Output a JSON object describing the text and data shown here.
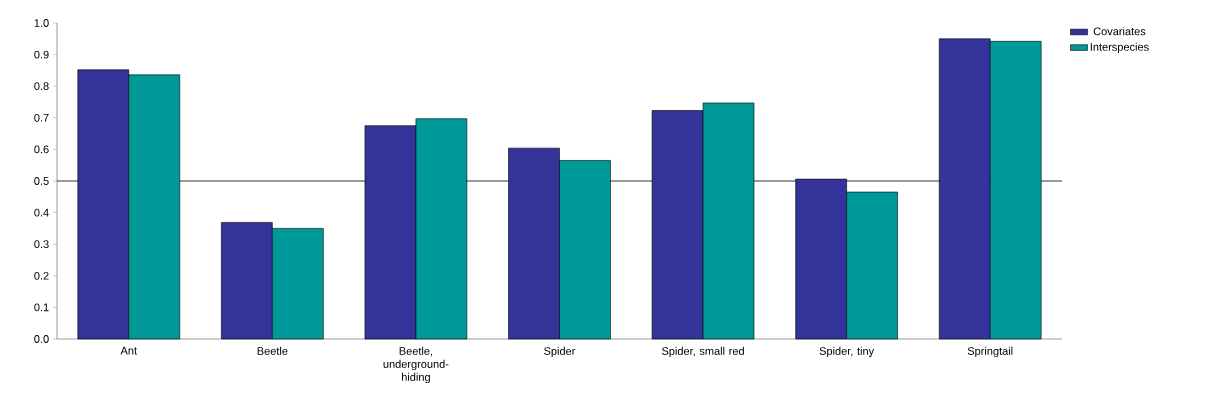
{
  "chart_data": {
    "type": "bar",
    "categories": [
      "Ant",
      "Beetle",
      "Beetle, underground-hiding",
      "Spider",
      "Spider, small red",
      "Spider, tiny",
      "Springtail"
    ],
    "series": [
      {
        "name": "Covariates",
        "color": "#333399",
        "values": [
          0.852,
          0.369,
          0.675,
          0.604,
          0.723,
          0.506,
          0.95
        ]
      },
      {
        "name": "Interspecies",
        "color": "#009999",
        "values": [
          0.836,
          0.35,
          0.697,
          0.565,
          0.747,
          0.465,
          0.942
        ]
      }
    ],
    "ylim": [
      0,
      1
    ],
    "yticks": [
      {
        "value": 0,
        "label": "0.0"
      },
      {
        "value": 0.1,
        "label": "0.1"
      },
      {
        "value": 0.2,
        "label": "0.2"
      },
      {
        "value": 0.3,
        "label": "0.3"
      },
      {
        "value": 0.4,
        "label": "0.4"
      },
      {
        "value": 0.5,
        "label": "0.5"
      },
      {
        "value": 0.6,
        "label": "0.6"
      },
      {
        "value": 0.7,
        "label": "0.7"
      },
      {
        "value": 0.8,
        "label": "0.8"
      },
      {
        "value": 0.9,
        "label": "0.9"
      },
      {
        "value": 1,
        "label": "1.0"
      }
    ],
    "ref_lines": [
      {
        "axis": "y",
        "value": 0.5,
        "color": "#000000"
      }
    ],
    "legend": "top right",
    "grid": false
  }
}
